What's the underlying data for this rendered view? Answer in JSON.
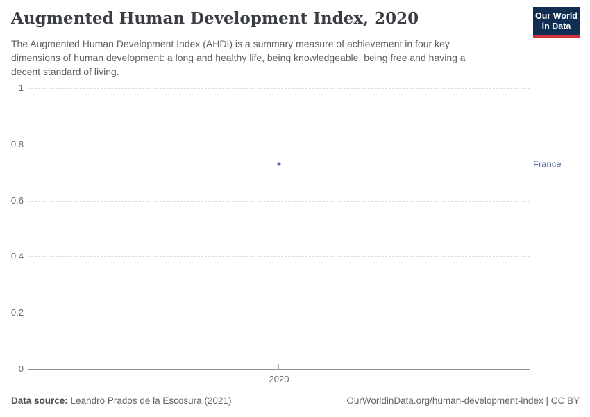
{
  "header": {
    "title": "Augmented Human Development Index, 2020",
    "subtitle": "The Augmented Human Development Index (AHDI) is a summary measure of achievement in four key dimensions of human development: a long and healthy life, being knowledgeable, being free and having a decent standard of living.",
    "logo": {
      "line1": "Our World",
      "line2": "in Data",
      "bg_color": "#0f2e52",
      "accent_color": "#d13239"
    }
  },
  "chart_data": {
    "type": "scatter",
    "title": "Augmented Human Development Index, 2020",
    "xlabel": "",
    "ylabel": "",
    "x": [
      2020
    ],
    "xtick_labels": [
      "2020"
    ],
    "series": [
      {
        "name": "France",
        "x": [
          2020
        ],
        "values": [
          0.73
        ],
        "color": "#4c6a9c"
      }
    ],
    "ylim": [
      0,
      1
    ],
    "yticks": [
      0,
      0.2,
      0.4,
      0.6,
      0.8,
      1
    ],
    "ytick_labels": [
      "0",
      "0.2",
      "0.4",
      "0.6",
      "0.8",
      "1"
    ],
    "grid": true,
    "gridline_color": "#dcdcdc",
    "legend_position": "right-of-point"
  },
  "footer": {
    "datasource_label": "Data source:",
    "datasource_value": "Leandro Prados de la Escosura (2021)",
    "url": "OurWorldinData.org/human-development-index",
    "separator": " | ",
    "license": "CC BY"
  }
}
